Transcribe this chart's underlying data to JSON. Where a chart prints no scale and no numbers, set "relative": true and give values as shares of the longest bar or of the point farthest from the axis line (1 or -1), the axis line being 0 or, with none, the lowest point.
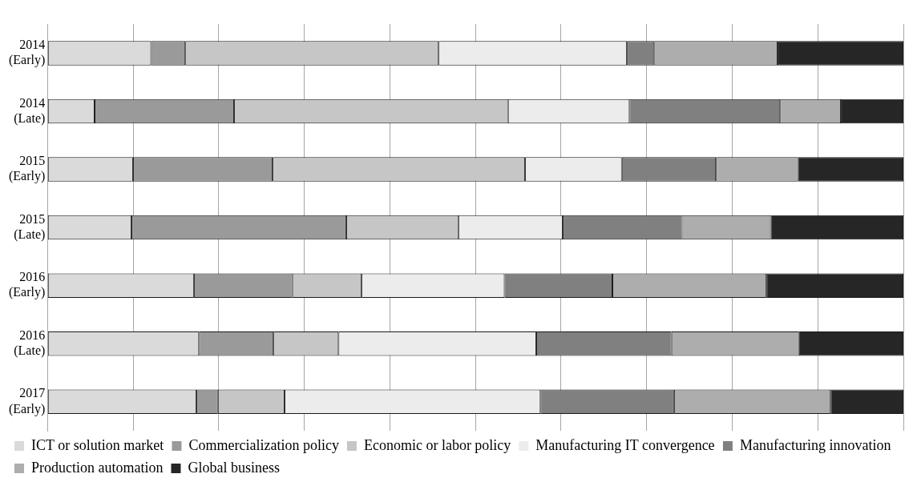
{
  "chart_data": {
    "type": "bar",
    "orientation": "horizontal",
    "stacked": true,
    "relative": true,
    "grid": "x",
    "legend": "bottom",
    "categories": [
      "2014 (Early)",
      "2014 (Late)",
      "2015 (Early)",
      "2015 (Late)",
      "2016 (Early)",
      "2016 (Late)",
      "2017 (Early)"
    ],
    "series": [
      {
        "name": "ICT or solution market",
        "color": "#dadada",
        "values": [
          0.121,
          0.055,
          0.1,
          0.098,
          0.171,
          0.177,
          0.174
        ]
      },
      {
        "name": "Commercialization policy",
        "color": "#9a9a9a",
        "values": [
          0.04,
          0.163,
          0.163,
          0.251,
          0.115,
          0.087,
          0.025
        ]
      },
      {
        "name": "Economic or labor policy",
        "color": "#c6c6c6",
        "values": [
          0.296,
          0.32,
          0.295,
          0.131,
          0.081,
          0.076,
          0.078
        ]
      },
      {
        "name": "Manufacturing IT convergence",
        "color": "#ececec",
        "values": [
          0.22,
          0.142,
          0.113,
          0.122,
          0.167,
          0.231,
          0.299
        ]
      },
      {
        "name": "Manufacturing innovation",
        "color": "#808080",
        "values": [
          0.032,
          0.176,
          0.11,
          0.139,
          0.126,
          0.158,
          0.156
        ]
      },
      {
        "name": "Production automation",
        "color": "#adadad",
        "values": [
          0.144,
          0.071,
          0.096,
          0.104,
          0.18,
          0.149,
          0.183
        ]
      },
      {
        "name": "Global business",
        "color": "#262626",
        "values": [
          0.147,
          0.073,
          0.123,
          0.155,
          0.16,
          0.122,
          0.085
        ]
      }
    ]
  }
}
